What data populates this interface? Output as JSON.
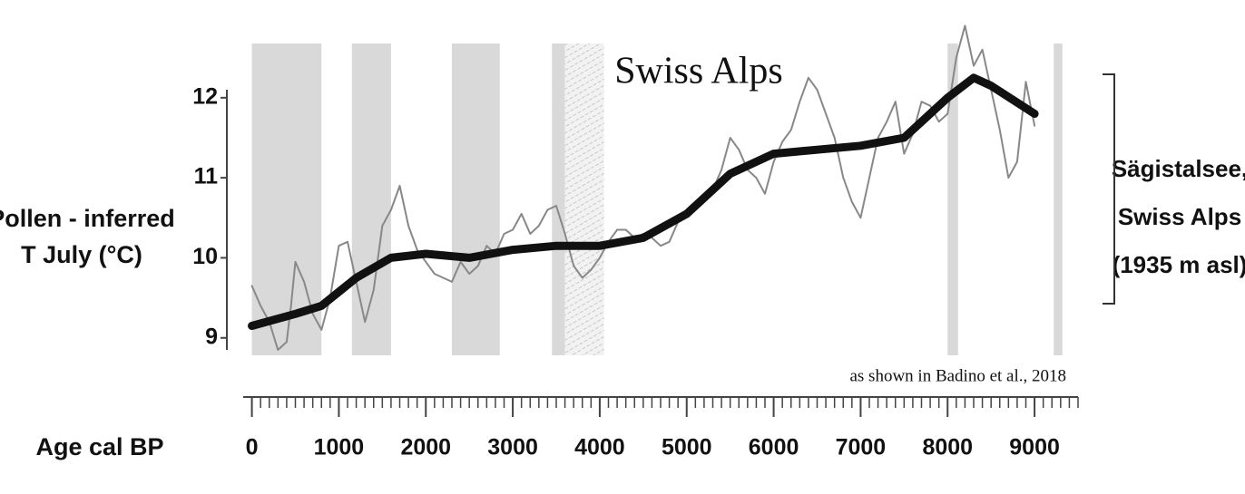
{
  "chart_data": {
    "type": "line",
    "title": "Swiss Alps",
    "ylabel": [
      "Pollen - inferred",
      "T July (°C)"
    ],
    "xlabel": "Age cal BP",
    "right_label": [
      "Sägistalsee,",
      "Swiss Alps",
      "(1935 m asl)"
    ],
    "annotation": "as shown in Badino et al., 2018",
    "xlim": [
      -100,
      9500
    ],
    "ylim": [
      8.85,
      12.1
    ],
    "xticks": [
      0,
      1000,
      2000,
      3000,
      4000,
      5000,
      6000,
      7000,
      8000,
      9000
    ],
    "xminorticks": [
      0,
      100,
      200,
      300,
      400,
      500,
      600,
      700,
      800,
      900,
      1000,
      1100,
      1200,
      1300,
      1400,
      1500,
      1600,
      1700,
      1800,
      1900,
      2000,
      2100,
      2200,
      2300,
      2400,
      2500,
      2600,
      2700,
      2800,
      2900,
      3000,
      3100,
      3200,
      3300,
      3400,
      3500,
      3600,
      3700,
      3800,
      3900,
      4000,
      4100,
      4200,
      4300,
      4400,
      4500,
      4600,
      4700,
      4800,
      4900,
      5000,
      5100,
      5200,
      5300,
      5400,
      5500,
      5600,
      5700,
      5800,
      5900,
      6000,
      6100,
      6200,
      6300,
      6400,
      6500,
      6600,
      6700,
      6800,
      6900,
      7000,
      7100,
      7200,
      7300,
      7400,
      7500,
      7600,
      7700,
      7800,
      7900,
      8000,
      8100,
      8200,
      8300,
      8400,
      8500,
      8600,
      8700,
      8800,
      8900,
      9000,
      9100,
      9200,
      9300,
      9400,
      9500
    ],
    "yticks": [
      9,
      10,
      11,
      12
    ],
    "bands": [
      [
        0,
        800
      ],
      [
        1150,
        1600
      ],
      [
        2300,
        2850
      ],
      [
        3450,
        3600
      ],
      [
        8000,
        8120
      ],
      [
        9220,
        9320
      ]
    ],
    "hatched_bands": [
      [
        3600,
        4050
      ]
    ],
    "band_color": "#d9d9d9",
    "series": [
      {
        "color": "#888888",
        "width": 2,
        "x": [
          0,
          100,
          200,
          300,
          400,
          450,
          500,
          600,
          700,
          800,
          900,
          1000,
          1100,
          1200,
          1300,
          1400,
          1500,
          1600,
          1700,
          1800,
          1900,
          2000,
          2100,
          2200,
          2300,
          2400,
          2500,
          2600,
          2700,
          2800,
          2900,
          3000,
          3100,
          3200,
          3300,
          3400,
          3500,
          3600,
          3700,
          3800,
          3900,
          4000,
          4100,
          4200,
          4300,
          4400,
          4500,
          4600,
          4700,
          4800,
          4900,
          5000,
          5100,
          5200,
          5300,
          5400,
          5500,
          5600,
          5700,
          5800,
          5900,
          6000,
          6100,
          6200,
          6300,
          6400,
          6500,
          6600,
          6700,
          6800,
          6900,
          7000,
          7100,
          7200,
          7300,
          7400,
          7500,
          7600,
          7700,
          7800,
          7900,
          8000,
          8100,
          8200,
          8300,
          8400,
          8500,
          8600,
          8700,
          8800,
          8900,
          9000
        ],
        "values": [
          9.65,
          9.4,
          9.2,
          8.85,
          8.95,
          9.4,
          9.95,
          9.7,
          9.3,
          9.1,
          9.5,
          10.15,
          10.2,
          9.7,
          9.2,
          9.6,
          10.4,
          10.6,
          10.9,
          10.4,
          10.1,
          9.95,
          9.8,
          9.75,
          9.7,
          9.95,
          9.8,
          9.9,
          10.15,
          10.05,
          10.3,
          10.35,
          10.55,
          10.3,
          10.4,
          10.6,
          10.65,
          10.3,
          9.9,
          9.75,
          9.85,
          10.0,
          10.2,
          10.35,
          10.35,
          10.25,
          10.3,
          10.25,
          10.15,
          10.2,
          10.45,
          10.55,
          10.7,
          10.7,
          10.85,
          11.1,
          11.5,
          11.35,
          11.1,
          11.0,
          10.8,
          11.2,
          11.45,
          11.6,
          11.95,
          12.25,
          12.1,
          11.8,
          11.5,
          11.0,
          10.7,
          10.5,
          11.0,
          11.5,
          11.7,
          11.95,
          11.3,
          11.55,
          11.95,
          11.9,
          11.7,
          11.8,
          12.5,
          12.9,
          12.4,
          12.6,
          12.1,
          11.6,
          11.0,
          11.2,
          12.2,
          11.65
        ]
      },
      {
        "color": "#111111",
        "width": 9,
        "x": [
          0,
          500,
          800,
          1200,
          1600,
          2000,
          2500,
          3000,
          3500,
          4000,
          4500,
          5000,
          5500,
          6000,
          6500,
          7000,
          7500,
          8000,
          8300,
          8500,
          9000
        ],
        "values": [
          9.15,
          9.3,
          9.4,
          9.75,
          10.0,
          10.05,
          10.0,
          10.1,
          10.15,
          10.15,
          10.25,
          10.55,
          11.05,
          11.3,
          11.35,
          11.4,
          11.5,
          12.0,
          12.25,
          12.15,
          11.8
        ]
      }
    ]
  }
}
